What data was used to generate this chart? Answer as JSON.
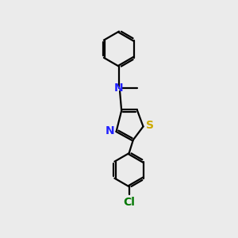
{
  "bg_color": "#ebebeb",
  "bond_color": "#000000",
  "N_color": "#2222ff",
  "S_color": "#ccaa00",
  "Cl_color": "#007700",
  "lw": 1.6,
  "xlim": [
    0,
    10
  ],
  "ylim": [
    0,
    14
  ],
  "figsize": [
    3.0,
    3.0
  ],
  "dpi": 100
}
